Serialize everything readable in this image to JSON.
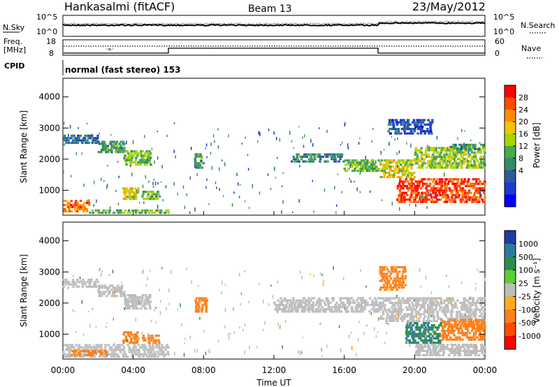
{
  "header": {
    "station": "Hankasalmi (fitACF)",
    "beam": "Beam 13",
    "date": "23/May/2012"
  },
  "noise_panel": {
    "left_label": "N.Sky",
    "left_ticks": [
      "10^5",
      "10^0"
    ],
    "right_label": "N.Search",
    "right_ticks": [
      "10^5",
      "10^0"
    ]
  },
  "freq_panel": {
    "left_label_1": "Freq.",
    "left_label_2": "[MHz]",
    "left_ticks": [
      "18",
      "8"
    ],
    "right_label": "Nave",
    "right_ticks": [
      "60",
      "0"
    ]
  },
  "cpid": {
    "label": "CPID",
    "text": "normal (fast stereo) 153"
  },
  "colorbars": {
    "power": {
      "label": "Power [dB]",
      "ticks": [
        "28",
        "24",
        "20",
        "16",
        "12",
        "8",
        "4"
      ],
      "colors": [
        "#ff0000",
        "#ff4a00",
        "#ff8c00",
        "#f5c400",
        "#a8d400",
        "#4aa84a",
        "#2e8c6a",
        "#2a5a9a",
        "#1a3ad0",
        "#0000ff"
      ]
    },
    "velocity": {
      "label": "Velocity [m s⁻¹]",
      "ticks": [
        "1000",
        "500",
        "100",
        "25",
        "-25",
        "-100",
        "-500",
        "-1000"
      ],
      "colors": [
        "#1e3ca0",
        "#2a7aa0",
        "#2e8c4a",
        "#5acd3a",
        "#bdbdbd",
        "#ffaa22",
        "#ff7f1a",
        "#ff4a00",
        "#ff0000"
      ]
    }
  },
  "chart_data": [
    {
      "type": "heatmap",
      "title": "Power",
      "ylabel": "Slant Range [km]",
      "xlim": [
        "00:00",
        "00:00"
      ],
      "ylim": [
        200,
        4600
      ],
      "ytick_labels": [
        "1000",
        "2000",
        "3000",
        "4000"
      ],
      "value_label": "Power [dB]",
      "value_range": [
        0,
        30
      ],
      "notes": "Scatter echoes approximated as bands; range in km, time in hours UT",
      "bands": [
        {
          "t": [
            0.0,
            2.0
          ],
          "r": [
            2500,
            2800
          ],
          "v": 8
        },
        {
          "t": [
            2.0,
            3.5
          ],
          "r": [
            2200,
            2600
          ],
          "v": 12
        },
        {
          "t": [
            3.5,
            5.0
          ],
          "r": [
            1800,
            2300
          ],
          "v": 14
        },
        {
          "t": [
            0.0,
            1.5
          ],
          "r": [
            300,
            700
          ],
          "v": 24
        },
        {
          "t": [
            1.5,
            6.0
          ],
          "r": [
            250,
            400
          ],
          "v": 14
        },
        {
          "t": [
            3.4,
            4.3
          ],
          "r": [
            700,
            1100
          ],
          "v": 18
        },
        {
          "t": [
            4.5,
            5.5
          ],
          "r": [
            700,
            1000
          ],
          "v": 14
        },
        {
          "t": [
            7.5,
            8.0
          ],
          "r": [
            1700,
            2200
          ],
          "v": 12
        },
        {
          "t": [
            13.0,
            16.0
          ],
          "r": [
            1900,
            2200
          ],
          "v": 10
        },
        {
          "t": [
            16.0,
            18.0
          ],
          "r": [
            1600,
            2000
          ],
          "v": 14
        },
        {
          "t": [
            18.0,
            20.0
          ],
          "r": [
            1400,
            2000
          ],
          "v": 18
        },
        {
          "t": [
            20.0,
            24.0
          ],
          "r": [
            1700,
            2400
          ],
          "v": 16
        },
        {
          "t": [
            19.0,
            24.0
          ],
          "r": [
            600,
            1400
          ],
          "v": 26
        },
        {
          "t": [
            18.5,
            21.0
          ],
          "r": [
            2800,
            3300
          ],
          "v": 6
        },
        {
          "t": [
            22.0,
            24.0
          ],
          "r": [
            2300,
            2500
          ],
          "v": 12
        }
      ]
    },
    {
      "type": "heatmap",
      "title": "Velocity",
      "ylabel": "Slant Range [km]",
      "xlabel": "Time UT",
      "x_ticks": [
        "00:00",
        "04:00",
        "08:00",
        "12:00",
        "16:00",
        "20:00",
        "00:00"
      ],
      "ylim": [
        200,
        4600
      ],
      "ytick_labels": [
        "1000",
        "2000",
        "3000",
        "4000"
      ],
      "value_label": "Velocity [m s⁻¹]",
      "notes": "Scatter echoes approximated as bands; grey = ground scatter",
      "bands": [
        {
          "t": [
            0.0,
            2.0
          ],
          "r": [
            2500,
            2800
          ],
          "v": 0
        },
        {
          "t": [
            2.0,
            3.5
          ],
          "r": [
            2200,
            2600
          ],
          "v": 0
        },
        {
          "t": [
            3.5,
            5.0
          ],
          "r": [
            1800,
            2300
          ],
          "v": 0
        },
        {
          "t": [
            0.0,
            6.0
          ],
          "r": [
            250,
            700
          ],
          "v": 0
        },
        {
          "t": [
            0.5,
            2.5
          ],
          "r": [
            300,
            500
          ],
          "v": -150
        },
        {
          "t": [
            3.4,
            4.3
          ],
          "r": [
            700,
            1100
          ],
          "v": -150
        },
        {
          "t": [
            4.5,
            5.5
          ],
          "r": [
            700,
            1000
          ],
          "v": -150
        },
        {
          "t": [
            7.5,
            8.2
          ],
          "r": [
            1700,
            2200
          ],
          "v": -150
        },
        {
          "t": [
            12.0,
            18.0
          ],
          "r": [
            1700,
            2200
          ],
          "v": 0
        },
        {
          "t": [
            18.0,
            24.0
          ],
          "r": [
            1400,
            2200
          ],
          "v": 0
        },
        {
          "t": [
            19.5,
            21.5
          ],
          "r": [
            700,
            1400
          ],
          "v": 300
        },
        {
          "t": [
            21.5,
            24.0
          ],
          "r": [
            800,
            1500
          ],
          "v": -200
        },
        {
          "t": [
            18.0,
            19.5
          ],
          "r": [
            2400,
            3200
          ],
          "v": -150
        },
        {
          "t": [
            20.0,
            24.0
          ],
          "r": [
            300,
            700
          ],
          "v": 0
        }
      ]
    }
  ],
  "x_axis": {
    "label": "Time UT",
    "ticks": [
      "00:00",
      "04:00",
      "08:00",
      "12:00",
      "16:00",
      "20:00",
      "00:00"
    ]
  }
}
